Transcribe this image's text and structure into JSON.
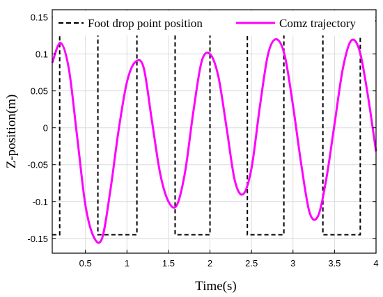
{
  "chart_data": {
    "type": "line",
    "title": "",
    "xlabel": "Time(s)",
    "ylabel": "Z-position(m)",
    "xlim": [
      0.1,
      4.0
    ],
    "ylim": [
      -0.17,
      0.16
    ],
    "grid": true,
    "legend_position": "top",
    "x_ticks": [
      0.5,
      1,
      1.5,
      2,
      2.5,
      3,
      3.5,
      4
    ],
    "x_tick_labels": [
      "0.5",
      "1",
      "1.5",
      "2",
      "2.5",
      "3",
      "3.5",
      "4"
    ],
    "y_ticks": [
      -0.15,
      -0.1,
      -0.05,
      0,
      0.05,
      0.1,
      0.15
    ],
    "y_tick_labels": [
      "-0.15",
      "-0.1",
      "-0.05",
      "0",
      "0.05",
      "0.1",
      "0.15"
    ],
    "series": [
      {
        "name": "Foot drop point position",
        "style": "dashed",
        "color": "#000000",
        "x": [
          0.1,
          0.19,
          0.19,
          0.65,
          0.65,
          1.12,
          1.12,
          1.58,
          1.58,
          2.0,
          2.0,
          2.45,
          2.45,
          2.89,
          2.89,
          3.36,
          3.36,
          3.81,
          3.81,
          4.0
        ],
        "y": [
          -0.145,
          -0.145,
          0.145,
          0.145,
          -0.145,
          -0.145,
          0.145,
          0.145,
          -0.145,
          -0.145,
          0.145,
          0.145,
          -0.145,
          -0.145,
          0.145,
          0.145,
          -0.145,
          -0.145,
          0.145,
          0.145
        ]
      },
      {
        "name": "Comz trajectory",
        "style": "solid",
        "color": "#ff00ff",
        "x": [
          0.1,
          0.2,
          0.3,
          0.4,
          0.5,
          0.6,
          0.7,
          0.8,
          0.9,
          1.0,
          1.1,
          1.2,
          1.3,
          1.4,
          1.5,
          1.6,
          1.7,
          1.8,
          1.9,
          2.0,
          2.1,
          2.2,
          2.3,
          2.4,
          2.5,
          2.6,
          2.7,
          2.8,
          2.9,
          3.0,
          3.1,
          3.2,
          3.3,
          3.4,
          3.5,
          3.6,
          3.7,
          3.8,
          3.9,
          4.0
        ],
        "y": [
          0.088,
          0.115,
          0.08,
          -0.012,
          -0.105,
          -0.148,
          -0.15,
          -0.085,
          -0.003,
          0.062,
          0.089,
          0.082,
          0.01,
          -0.062,
          -0.1,
          -0.105,
          -0.06,
          0.022,
          0.09,
          0.1,
          0.07,
          0.0,
          -0.072,
          -0.09,
          -0.055,
          0.028,
          0.1,
          0.12,
          0.098,
          0.03,
          -0.05,
          -0.115,
          -0.12,
          -0.07,
          0.005,
          0.08,
          0.118,
          0.105,
          0.045,
          -0.032
        ]
      }
    ]
  }
}
